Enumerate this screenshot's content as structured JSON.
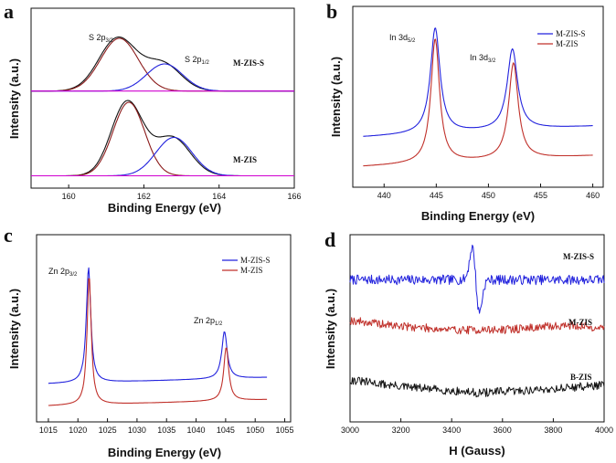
{
  "colors": {
    "blue": "#2222dd",
    "red": "#c0302a",
    "black": "#111111",
    "magenta": "#d000d0",
    "darkred": "#8b1a1a"
  },
  "chart_data": [
    {
      "id": "a",
      "panel_label": "a",
      "type": "line",
      "title": "",
      "xlabel": "Binding Energy (eV)",
      "ylabel": "Intensity (a.u.)",
      "xlim": [
        159,
        166
      ],
      "ylim": [
        0,
        100
      ],
      "xticks": [
        "160",
        "162",
        "164",
        "166"
      ],
      "show_y_ticks": false,
      "curve_labels": [
        {
          "text": "M-ZIS-S",
          "x": 165.4,
          "y": 67
        },
        {
          "text": "M-ZIS",
          "x": 165.0,
          "y": 24
        }
      ],
      "peak_labels": [
        {
          "main": "S 2p",
          "sub": "3/2",
          "x": 160.7,
          "y": 94
        },
        {
          "main": "S 2p",
          "sub": "1/2",
          "x": 162.8,
          "y": 67
        }
      ],
      "series": [
        {
          "name": "M-ZIS-S envelope",
          "color": "black",
          "kind": "envelope",
          "baseline": 55,
          "peaks": [
            [
              161.3,
              33,
              0.5
            ],
            [
              162.5,
              17,
              0.48
            ]
          ]
        },
        {
          "name": "M-ZIS-S S2p3/2 fit",
          "color": "darkred",
          "kind": "gauss",
          "baseline": 55,
          "peaks": [
            [
              161.35,
              33,
              0.5
            ]
          ]
        },
        {
          "name": "M-ZIS-S S2p1/2 fit",
          "color": "blue",
          "kind": "gauss",
          "baseline": 55,
          "peaks": [
            [
              162.55,
              17,
              0.48
            ]
          ]
        },
        {
          "name": "M-ZIS-S baseline",
          "color": "magenta",
          "kind": "flat",
          "baseline": 55,
          "peaks": []
        },
        {
          "name": "M-ZIS envelope",
          "color": "black",
          "kind": "envelope",
          "baseline": 2,
          "peaks": [
            [
              161.55,
              46,
              0.42
            ],
            [
              162.75,
              24,
              0.48
            ]
          ]
        },
        {
          "name": "M-ZIS S2p3/2 fit",
          "color": "darkred",
          "kind": "gauss",
          "baseline": 2,
          "peaks": [
            [
              161.6,
              46,
              0.42
            ]
          ]
        },
        {
          "name": "M-ZIS S2p1/2 fit",
          "color": "blue",
          "kind": "gauss",
          "baseline": 2,
          "peaks": [
            [
              162.8,
              24,
              0.48
            ]
          ]
        },
        {
          "name": "M-ZIS baseline",
          "color": "magenta",
          "kind": "flat",
          "baseline": 2,
          "peaks": []
        }
      ]
    },
    {
      "id": "b",
      "panel_label": "b",
      "type": "line",
      "title": "",
      "xlabel": "Binding Energy (eV)",
      "ylabel": "Intensity (a.u.)",
      "xlim": [
        437,
        461
      ],
      "ylim": [
        0,
        100
      ],
      "xticks": [
        "440",
        "445",
        "450",
        "455",
        "460"
      ],
      "show_y_ticks": false,
      "legend": {
        "position": "top-right",
        "entries": [
          {
            "label": "M-ZIS-S",
            "color": "blue"
          },
          {
            "label": "M-ZIS",
            "color": "red"
          }
        ]
      },
      "peak_labels": [
        {
          "main": "In 3d",
          "sub": "5/2",
          "x": 443.0,
          "y": 80
        },
        {
          "main": "In 3d",
          "sub": "3/2",
          "x": 450.2,
          "y": 68
        }
      ],
      "series": [
        {
          "name": "M-ZIS-S",
          "color": "blue",
          "kind": "lorentz",
          "x_range": [
            438,
            460
          ],
          "baseline": [
            24,
            31
          ],
          "peaks": [
            [
              444.9,
              68,
              0.55
            ],
            [
              452.3,
              52,
              0.6
            ]
          ]
        },
        {
          "name": "M-ZIS",
          "color": "red",
          "kind": "lorentz",
          "x_range": [
            438,
            460
          ],
          "baseline": [
            5,
            12
          ],
          "peaks": [
            [
              444.9,
              80,
              0.5
            ],
            [
              452.4,
              62,
              0.55
            ]
          ]
        }
      ]
    },
    {
      "id": "c",
      "panel_label": "c",
      "type": "line",
      "title": "",
      "xlabel": "Binding Energy (eV)",
      "ylabel": "Intensity (a.u.)",
      "xlim": [
        1013,
        1056
      ],
      "ylim": [
        0,
        100
      ],
      "xticks": [
        "1015",
        "1020",
        "1025",
        "1030",
        "1035",
        "1040",
        "1045",
        "1050",
        "1055"
      ],
      "show_y_ticks": false,
      "legend": {
        "position": "top-right",
        "entries": [
          {
            "label": "M-ZIS-S",
            "color": "blue"
          },
          {
            "label": "M-ZIS",
            "color": "red"
          }
        ]
      },
      "peak_labels": [
        {
          "main": "Zn 2p",
          "sub": "3/2",
          "x": 1013.5,
          "y": 68
        },
        {
          "main": "Zn 2p",
          "sub": "1/2",
          "x": 1039.5,
          "y": 38
        }
      ],
      "series": [
        {
          "name": "M-ZIS-S",
          "color": "blue",
          "kind": "lorentz",
          "x_range": [
            1015,
            1052
          ],
          "baseline": [
            16,
            20
          ],
          "peaks": [
            [
              1021.8,
              73,
              0.45
            ],
            [
              1044.8,
              30,
              0.55
            ]
          ]
        },
        {
          "name": "M-ZIS",
          "color": "red",
          "kind": "lorentz",
          "x_range": [
            1015,
            1052
          ],
          "baseline": [
            2,
            6
          ],
          "peaks": [
            [
              1021.9,
              82,
              0.42
            ],
            [
              1045.1,
              34,
              0.5
            ]
          ]
        }
      ]
    },
    {
      "id": "d",
      "panel_label": "d",
      "type": "line",
      "title": "",
      "xlabel": "H (Gauss)",
      "ylabel": "Intensity (a.u.)",
      "xlim": [
        3000,
        4000
      ],
      "ylim": [
        0,
        100
      ],
      "xticks": [
        "3000",
        "3200",
        "3400",
        "3600",
        "3800",
        "4000"
      ],
      "show_y_ticks": false,
      "curve_labels": [
        {
          "text": "M-ZIS-S",
          "x": 3860,
          "y": 93
        },
        {
          "text": "M-ZIS",
          "x": 3860,
          "y": 62
        },
        {
          "text": "B-ZIS",
          "x": 3870,
          "y": 24
        }
      ],
      "series": [
        {
          "name": "M-ZIS-S",
          "color": "blue",
          "kind": "epr",
          "baseline": 80,
          "noise": 3.0,
          "seed": 7,
          "feature": [
            3495,
            20,
            14
          ]
        },
        {
          "name": "M-ZIS",
          "color": "red",
          "kind": "noisy",
          "baseline": 49,
          "noise": 2.6,
          "seed": 19,
          "drift": [
            [
              3000,
              6
            ],
            [
              3150,
              3
            ],
            [
              3400,
              0
            ],
            [
              3600,
              0
            ],
            [
              3860,
              3
            ],
            [
              4000,
              1
            ]
          ]
        },
        {
          "name": "B-ZIS",
          "color": "black",
          "kind": "noisy",
          "baseline": 12,
          "noise": 2.6,
          "seed": 31,
          "drift": [
            [
              3000,
              6
            ],
            [
              3200,
              2
            ],
            [
              3500,
              -2
            ],
            [
              3750,
              0
            ],
            [
              4000,
              3
            ]
          ]
        }
      ]
    }
  ]
}
